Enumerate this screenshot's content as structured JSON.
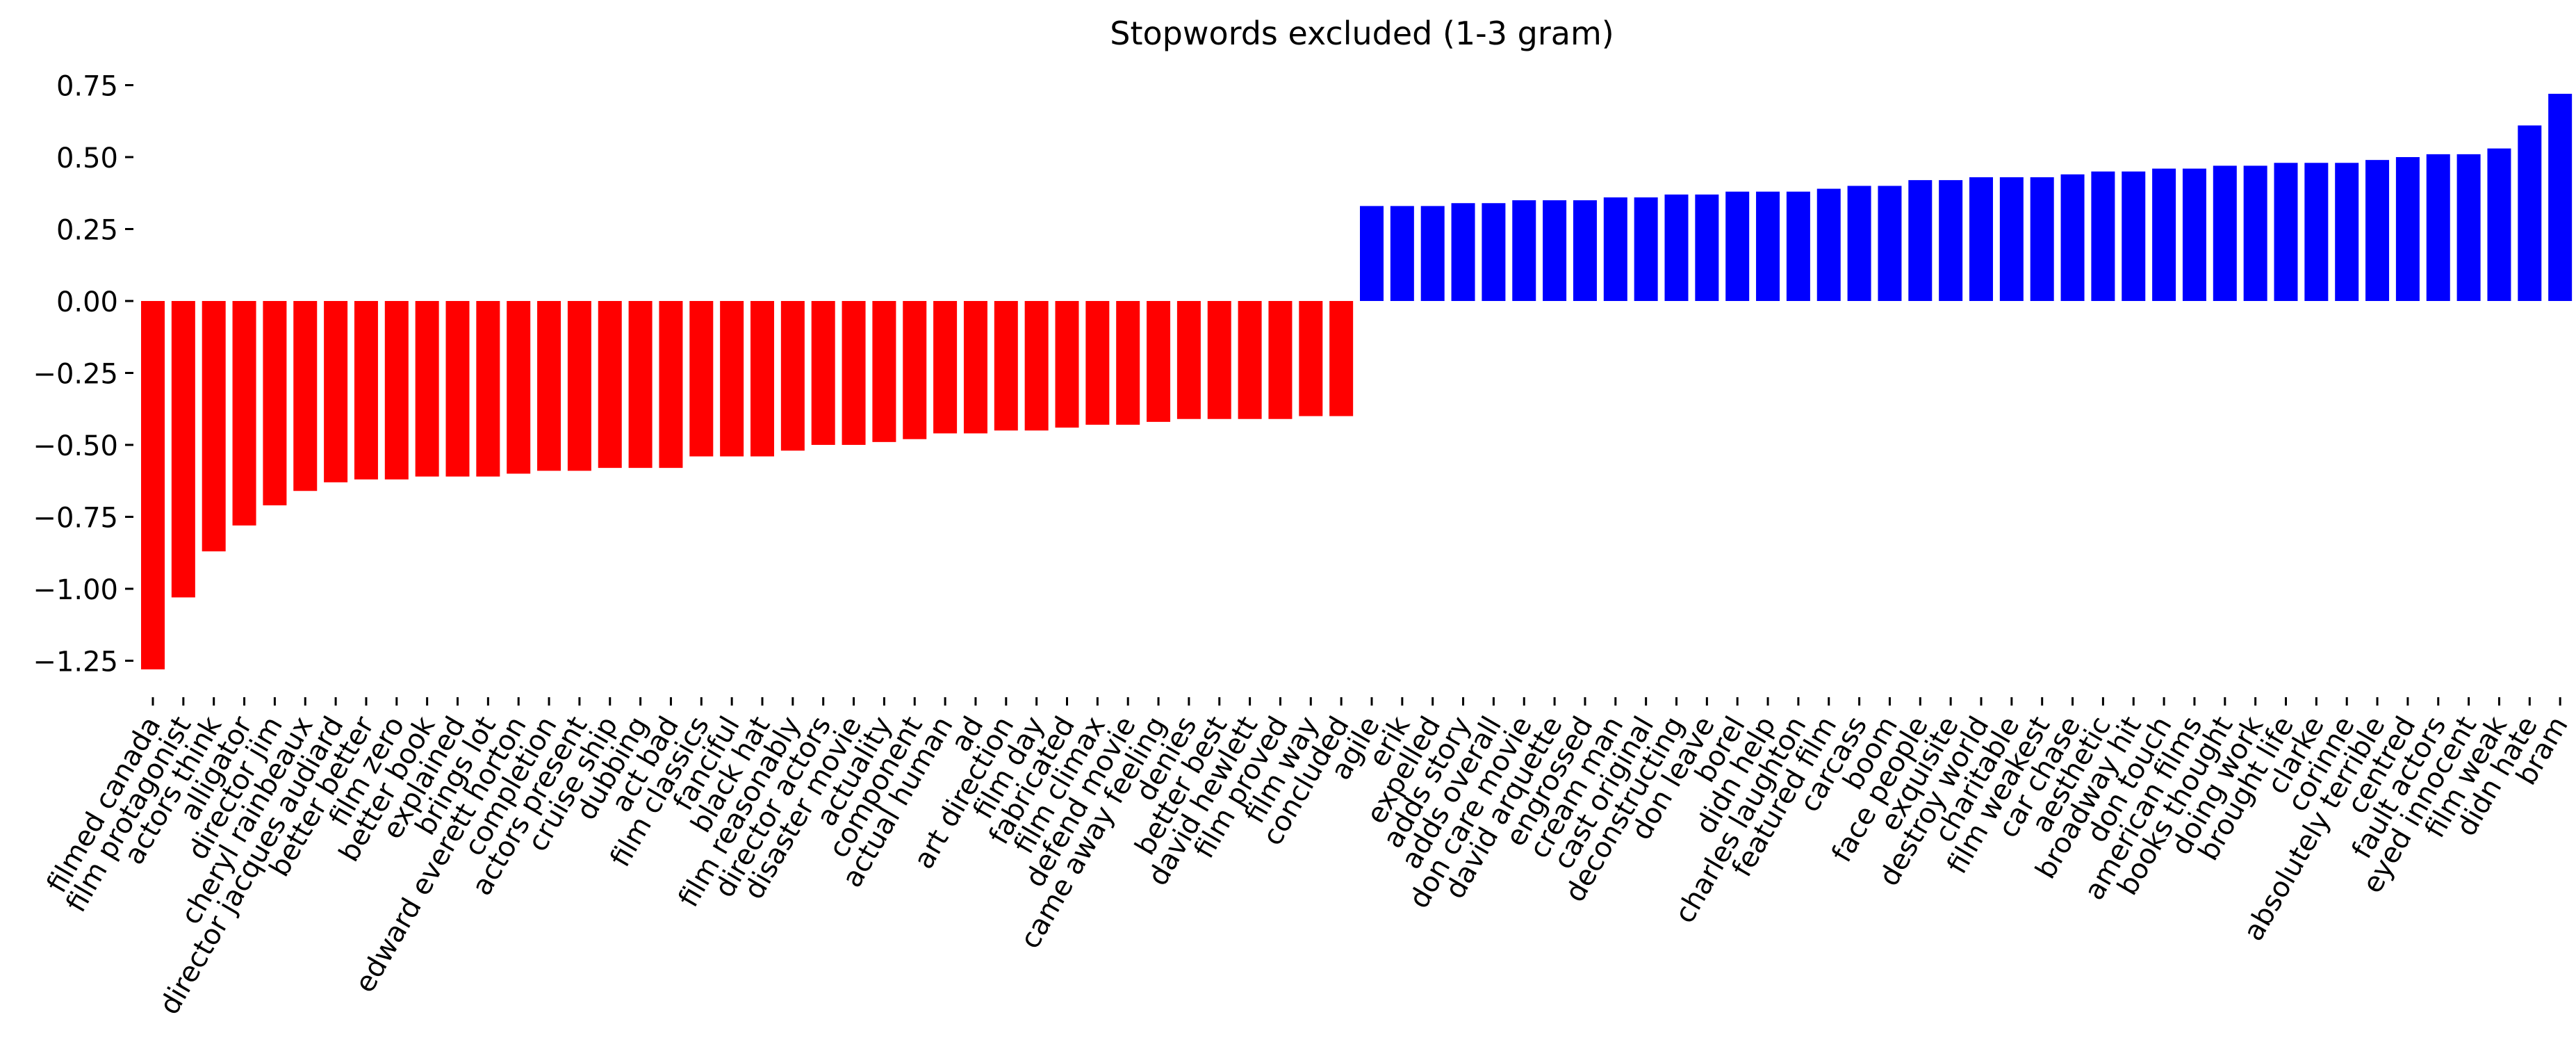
{
  "chart_data": {
    "type": "bar",
    "title": "Stopwords excluded (1-3 gram)",
    "xlabel": "",
    "ylabel": "",
    "ylim": [
      -1.35,
      0.8
    ],
    "yticks": [
      0.75,
      0.5,
      0.25,
      0.0,
      -0.25,
      -0.5,
      -0.75,
      -1.0,
      -1.25
    ],
    "ytick_labels": [
      "0.75",
      "0.50",
      "0.25",
      "0.00",
      "−0.25",
      "−0.50",
      "−0.75",
      "−1.00",
      "−1.25"
    ],
    "grid": false,
    "legend": "none",
    "colors": {
      "negative": "#ff0000",
      "positive": "#0000ff"
    },
    "categories": [
      "filmed canada",
      "film protagonist",
      "actors think",
      "alligator",
      "director jim",
      "cheryl rainbeaux",
      "director jacques audiard",
      "better better",
      "film zero",
      "better book",
      "explained",
      "brings lot",
      "edward everett horton",
      "completion",
      "actors present",
      "cruise ship",
      "dubbing",
      "act bad",
      "film classics",
      "fanciful",
      "black hat",
      "film reasonably",
      "director actors",
      "disaster movie",
      "actuality",
      "component",
      "actual human",
      "ad",
      "art direction",
      "film day",
      "fabricated",
      "film climax",
      "defend movie",
      "came away feeling",
      "denies",
      "better best",
      "david hewlett",
      "film proved",
      "film way",
      "concluded",
      "agile",
      "erik",
      "expelled",
      "adds story",
      "adds overall",
      "don care movie",
      "david arquette",
      "engrossed",
      "cream man",
      "cast original",
      "deconstructing",
      "don leave",
      "borel",
      "didn help",
      "charles laughton",
      "featured film",
      "carcass",
      "boom",
      "face people",
      "exquisite",
      "destroy world",
      "charitable",
      "film weakest",
      "car chase",
      "aesthetic",
      "broadway hit",
      "don touch",
      "american films",
      "books thought",
      "doing work",
      "brought life",
      "clarke",
      "corinne",
      "absolutely terrible",
      "centred",
      "fault actors",
      "eyed innocent",
      "film weak",
      "didn hate",
      "bram"
    ],
    "values": [
      -1.28,
      -1.03,
      -0.87,
      -0.78,
      -0.71,
      -0.66,
      -0.63,
      -0.62,
      -0.62,
      -0.61,
      -0.61,
      -0.61,
      -0.6,
      -0.59,
      -0.59,
      -0.58,
      -0.58,
      -0.58,
      -0.54,
      -0.54,
      -0.54,
      -0.52,
      -0.5,
      -0.5,
      -0.49,
      -0.48,
      -0.46,
      -0.46,
      -0.45,
      -0.45,
      -0.44,
      -0.43,
      -0.43,
      -0.42,
      -0.41,
      -0.41,
      -0.41,
      -0.41,
      -0.4,
      -0.4,
      0.33,
      0.33,
      0.33,
      0.34,
      0.34,
      0.35,
      0.35,
      0.35,
      0.36,
      0.36,
      0.37,
      0.37,
      0.38,
      0.38,
      0.38,
      0.39,
      0.4,
      0.4,
      0.42,
      0.42,
      0.43,
      0.43,
      0.43,
      0.44,
      0.45,
      0.45,
      0.46,
      0.46,
      0.47,
      0.47,
      0.48,
      0.48,
      0.48,
      0.49,
      0.5,
      0.51,
      0.51,
      0.53,
      0.61,
      0.72
    ]
  }
}
